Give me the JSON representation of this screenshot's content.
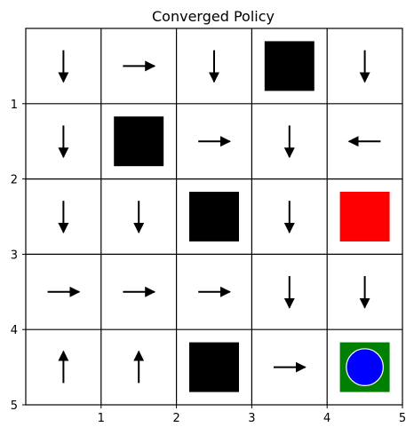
{
  "chart_data": {
    "type": "grid-policy",
    "title": "Converged Policy",
    "rows": 5,
    "cols": 5,
    "xlim": [
      0,
      5
    ],
    "ylim": [
      5,
      0
    ],
    "x_ticks": [
      "1",
      "2",
      "3",
      "4",
      "5"
    ],
    "y_ticks": [
      "1",
      "2",
      "3",
      "4",
      "5"
    ],
    "cells": [
      {
        "row": 0,
        "col": 0,
        "kind": "arrow",
        "action": "down"
      },
      {
        "row": 0,
        "col": 1,
        "kind": "arrow",
        "action": "right"
      },
      {
        "row": 0,
        "col": 2,
        "kind": "arrow",
        "action": "down"
      },
      {
        "row": 0,
        "col": 3,
        "kind": "obstacle"
      },
      {
        "row": 0,
        "col": 4,
        "kind": "arrow",
        "action": "down"
      },
      {
        "row": 1,
        "col": 0,
        "kind": "arrow",
        "action": "down"
      },
      {
        "row": 1,
        "col": 1,
        "kind": "obstacle"
      },
      {
        "row": 1,
        "col": 2,
        "kind": "arrow",
        "action": "right"
      },
      {
        "row": 1,
        "col": 3,
        "kind": "arrow",
        "action": "down"
      },
      {
        "row": 1,
        "col": 4,
        "kind": "arrow",
        "action": "left"
      },
      {
        "row": 2,
        "col": 0,
        "kind": "arrow",
        "action": "down"
      },
      {
        "row": 2,
        "col": 1,
        "kind": "arrow",
        "action": "down"
      },
      {
        "row": 2,
        "col": 2,
        "kind": "obstacle"
      },
      {
        "row": 2,
        "col": 3,
        "kind": "arrow",
        "action": "down"
      },
      {
        "row": 2,
        "col": 4,
        "kind": "hazard"
      },
      {
        "row": 3,
        "col": 0,
        "kind": "arrow",
        "action": "right"
      },
      {
        "row": 3,
        "col": 1,
        "kind": "arrow",
        "action": "right"
      },
      {
        "row": 3,
        "col": 2,
        "kind": "arrow",
        "action": "right"
      },
      {
        "row": 3,
        "col": 3,
        "kind": "arrow",
        "action": "down"
      },
      {
        "row": 3,
        "col": 4,
        "kind": "arrow",
        "action": "down"
      },
      {
        "row": 4,
        "col": 0,
        "kind": "arrow",
        "action": "up"
      },
      {
        "row": 4,
        "col": 1,
        "kind": "arrow",
        "action": "up"
      },
      {
        "row": 4,
        "col": 2,
        "kind": "obstacle"
      },
      {
        "row": 4,
        "col": 3,
        "kind": "arrow",
        "action": "right"
      },
      {
        "row": 4,
        "col": 4,
        "kind": "goal"
      }
    ],
    "colors": {
      "obstacle": "#000000",
      "hazard": "#ff0000",
      "goal_square": "#008000",
      "goal_circle": "#0000ff",
      "grid": "#000000",
      "arrow": "#000000"
    }
  }
}
